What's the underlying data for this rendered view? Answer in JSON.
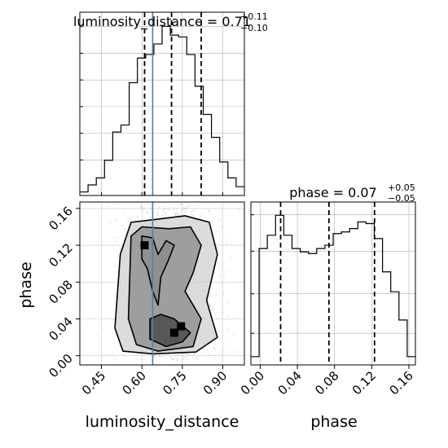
{
  "chart_data": [
    {
      "type": "histogram",
      "panel": "top-left",
      "title_param": "luminosity_distance",
      "title_value": "0.71",
      "title_sup": "+0.11",
      "title_sub": "−0.10",
      "xlim": [
        0.37,
        0.98
      ],
      "bins_start": 0.37,
      "bin_width": 0.0305,
      "counts": [
        0.2,
        0.6,
        1.0,
        2.0,
        3.6,
        4.0,
        6.4,
        7.8,
        8.0,
        8.6,
        9.6,
        9.1,
        9.0,
        8.0,
        6.2,
        4.6,
        3.3,
        1.9,
        1.0,
        0.5
      ],
      "quantiles": [
        0.61,
        0.71,
        0.82
      ],
      "truth": 0.64,
      "xticks": [
        0.45,
        0.6,
        0.75,
        0.9
      ],
      "grid": true,
      "colors": {
        "hist": "#000000",
        "quantile": "#000000",
        "truth": "#4682b4",
        "grid": "#b0b0b0"
      }
    },
    {
      "type": "contour",
      "panel": "bottom-left",
      "xlabel": "luminosity_distance",
      "ylabel": "phase",
      "xlim": [
        0.37,
        0.98
      ],
      "ylim": [
        -0.01,
        0.167
      ],
      "xtick_labels": [
        "0.45",
        "0.60",
        "0.75",
        "0.90"
      ],
      "xticks": [
        0.45,
        0.6,
        0.75,
        0.9
      ],
      "ytick_labels": [
        "0.00",
        "0.04",
        "0.08",
        "0.12",
        "0.16"
      ],
      "yticks": [
        0.0,
        0.04,
        0.08,
        0.12,
        0.16
      ],
      "truth_x": 0.64,
      "contour_levels": [
        {
          "level": 1,
          "points": [
            [
              0.5,
              0.03
            ],
            [
              0.52,
              0.11
            ],
            [
              0.56,
              0.145
            ],
            [
              0.65,
              0.148
            ],
            [
              0.76,
              0.152
            ],
            [
              0.85,
              0.145
            ],
            [
              0.88,
              0.11
            ],
            [
              0.84,
              0.06
            ],
            [
              0.88,
              0.02
            ],
            [
              0.8,
              0.004
            ],
            [
              0.64,
              0.002
            ],
            [
              0.53,
              0.005
            ]
          ]
        },
        {
          "level": 2,
          "points": [
            [
              0.55,
              0.04
            ],
            [
              0.56,
              0.13
            ],
            [
              0.6,
              0.14
            ],
            [
              0.7,
              0.138
            ],
            [
              0.78,
              0.14
            ],
            [
              0.82,
              0.12
            ],
            [
              0.79,
              0.09
            ],
            [
              0.76,
              0.07
            ],
            [
              0.82,
              0.04
            ],
            [
              0.79,
              0.01
            ],
            [
              0.66,
              0.005
            ],
            [
              0.58,
              0.012
            ]
          ]
        },
        {
          "level": 3,
          "points": [
            [
              0.6,
              0.105
            ],
            [
              0.6,
              0.13
            ],
            [
              0.64,
              0.128
            ],
            [
              0.66,
              0.11
            ],
            [
              0.69,
              0.125
            ],
            [
              0.72,
              0.12
            ],
            [
              0.7,
              0.105
            ],
            [
              0.67,
              0.085
            ],
            [
              0.66,
              0.055
            ],
            [
              0.64,
              0.07
            ],
            [
              0.62,
              0.095
            ]
          ]
        },
        {
          "level": 4,
          "points": [
            [
              0.63,
              0.018
            ],
            [
              0.63,
              0.04
            ],
            [
              0.67,
              0.045
            ],
            [
              0.72,
              0.04
            ],
            [
              0.78,
              0.025
            ],
            [
              0.75,
              0.015
            ],
            [
              0.69,
              0.01
            ]
          ]
        }
      ],
      "dark_spots": [
        [
          0.745,
          0.032
        ],
        [
          0.72,
          0.025
        ],
        [
          0.61,
          0.12
        ]
      ],
      "colors": {
        "contour": "#000000",
        "fill_dark": "#404040",
        "fill_mid": "#8a8a8a",
        "fill_light": "#d0d0d0",
        "points": "#9a9a9a",
        "truth": "#4682b4"
      }
    },
    {
      "type": "histogram",
      "panel": "bottom-right",
      "title_param": "phase",
      "title_value": "0.07",
      "title_sup": "+0.05",
      "title_sub": "−0.05",
      "xlabel": "phase",
      "xlim": [
        -0.01,
        0.167
      ],
      "bins_start": -0.01,
      "bin_width": 0.00885,
      "counts": [
        0.5,
        7.0,
        7.8,
        9.0,
        7.8,
        7.0,
        6.8,
        6.7,
        7.0,
        7.2,
        7.9,
        8.0,
        8.2,
        8.6,
        8.5,
        7.6,
        5.6,
        4.4,
        2.7,
        0.5
      ],
      "quantiles": [
        0.022,
        0.074,
        0.123
      ],
      "xtick_labels": [
        "0.00",
        "0.04",
        "0.08",
        "0.12",
        "0.16"
      ],
      "xticks": [
        0.0,
        0.04,
        0.08,
        0.12,
        0.16
      ],
      "grid": true,
      "colors": {
        "hist": "#000000",
        "quantile": "#000000",
        "grid": "#b0b0b0"
      }
    }
  ]
}
